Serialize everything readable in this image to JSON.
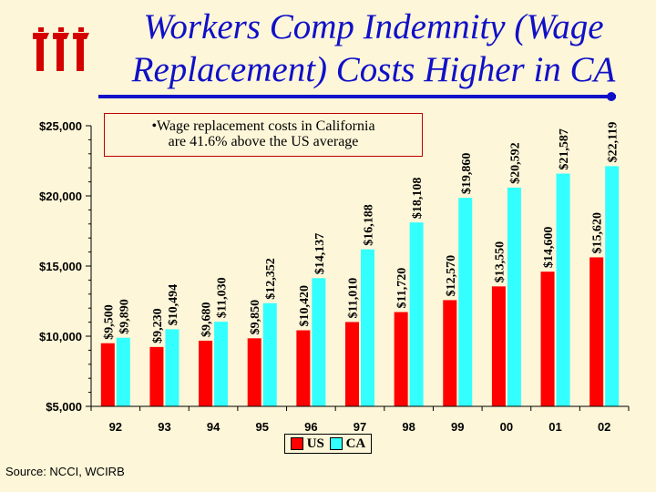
{
  "chart_data": {
    "type": "bar",
    "title": "Workers Comp Indemnity (Wage Replacement) Costs Higher in CA",
    "title_lines": [
      "Workers Comp Indemnity (Wage",
      "Replacement) Costs Higher in CA"
    ],
    "categories": [
      "92",
      "93",
      "94",
      "95",
      "96",
      "97",
      "98",
      "99",
      "00",
      "01",
      "02"
    ],
    "series": [
      {
        "name": "US",
        "color": "#ff0000",
        "values": [
          9500,
          9230,
          9680,
          9850,
          10420,
          11010,
          11720,
          12570,
          13550,
          14600,
          15620
        ],
        "labels": [
          "$9,500",
          "$9,230",
          "$9,680",
          "$9,850",
          "$10,420",
          "$11,010",
          "$11,720",
          "$12,570",
          "$13,550",
          "$14,600",
          "$15,620"
        ]
      },
      {
        "name": "CA",
        "color": "#33ffff",
        "values": [
          9890,
          10494,
          11030,
          12352,
          14137,
          16188,
          18108,
          19860,
          20592,
          21587,
          22119
        ],
        "labels": [
          "$9,890",
          "$10,494",
          "$11,030",
          "$12,352",
          "$14,137",
          "$16,188",
          "$18,108",
          "$19,860",
          "$20,592",
          "$21,587",
          "$22,119"
        ]
      }
    ],
    "ylim": [
      5000,
      25000
    ],
    "yticks": [
      5000,
      10000,
      15000,
      20000,
      25000
    ],
    "ytick_labels": [
      "$5,000",
      "$10,000",
      "$15,000",
      "$20,000",
      "$25,000"
    ],
    "grid": false,
    "legend": "bottom",
    "annotation": "•Wage replacement costs in California are 41.6% above the US average",
    "annotation_lines": [
      "•Wage replacement costs in California",
      "are 41.6% above the US average"
    ]
  },
  "source": "Source: NCCI, WCIRB",
  "colors": {
    "title": "#1010c8",
    "background": "#fdf6d8",
    "logo": "#d40000"
  },
  "logo_icon": "iii-logo-icon"
}
